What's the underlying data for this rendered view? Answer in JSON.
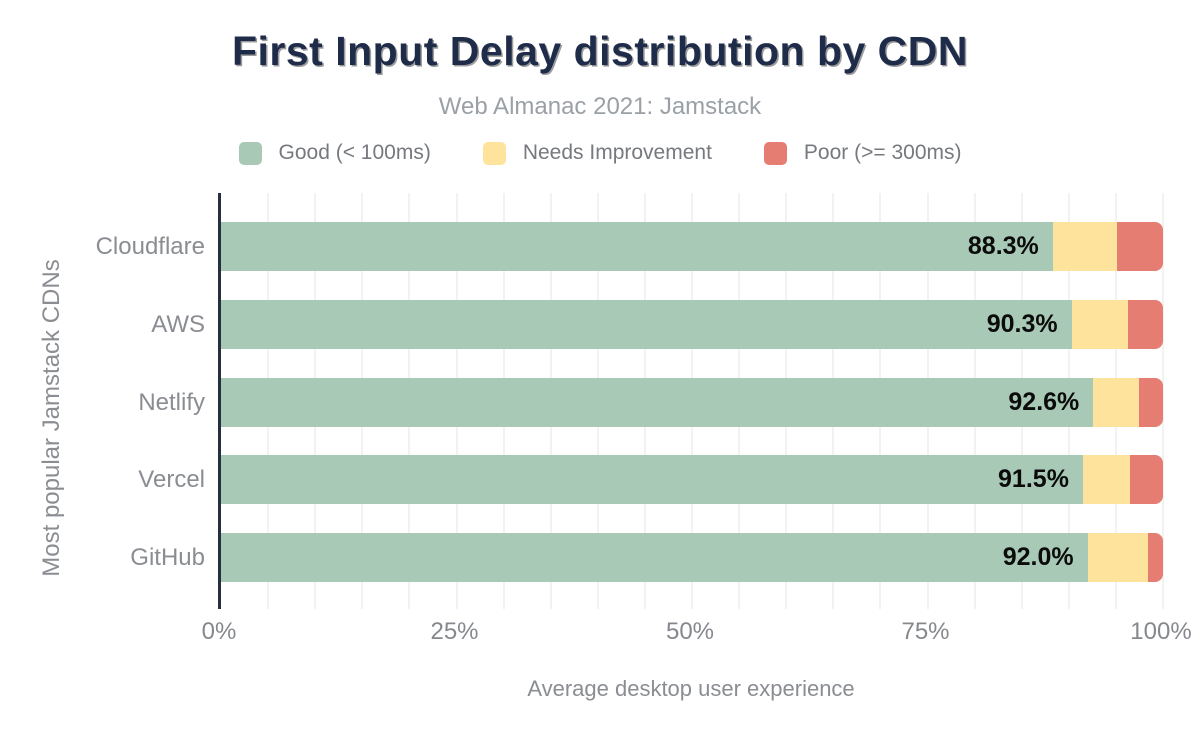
{
  "header": {
    "title": "First Input Delay distribution by CDN",
    "subtitle": "Web Almanac 2021: Jamstack"
  },
  "colors": {
    "good": "#a7c9b6",
    "needs_improvement": "#fde39b",
    "poor": "#e57d72",
    "title_text": "#1e2b49",
    "axis_line": "#262f3d",
    "muted_text": "#8a8d92"
  },
  "chart_data": {
    "type": "bar",
    "stacked": true,
    "orientation": "horizontal",
    "title": "First Input Delay distribution by CDN",
    "subtitle": "Web Almanac 2021: Jamstack",
    "categories": [
      "Cloudflare",
      "AWS",
      "Netlify",
      "Vercel",
      "GitHub"
    ],
    "series": [
      {
        "name": "Good (< 100ms)",
        "color": "#a7c9b6",
        "values": [
          88.3,
          90.3,
          92.6,
          91.5,
          92.0
        ]
      },
      {
        "name": "Needs Improvement",
        "color": "#fde39b",
        "values": [
          6.8,
          6.0,
          4.9,
          5.0,
          6.4
        ]
      },
      {
        "name": "Poor (>= 300ms)",
        "color": "#e57d72",
        "values": [
          4.9,
          3.7,
          2.5,
          3.5,
          1.6
        ]
      }
    ],
    "bar_labels": [
      "88.3%",
      "90.3%",
      "92.6%",
      "91.5%",
      "92.0%"
    ],
    "xlabel": "Average desktop user experience",
    "ylabel": "Most popular Jamstack CDNs",
    "x_ticks": [
      {
        "label": "0%",
        "value": 0
      },
      {
        "label": "25%",
        "value": 25
      },
      {
        "label": "50%",
        "value": 50
      },
      {
        "label": "75%",
        "value": 75
      },
      {
        "label": "100%",
        "value": 100
      }
    ],
    "xlim": [
      0,
      100
    ],
    "grid": {
      "vertical_minor_step_pct": 5,
      "color": "#f2f2f2"
    },
    "legend_position": "top"
  }
}
